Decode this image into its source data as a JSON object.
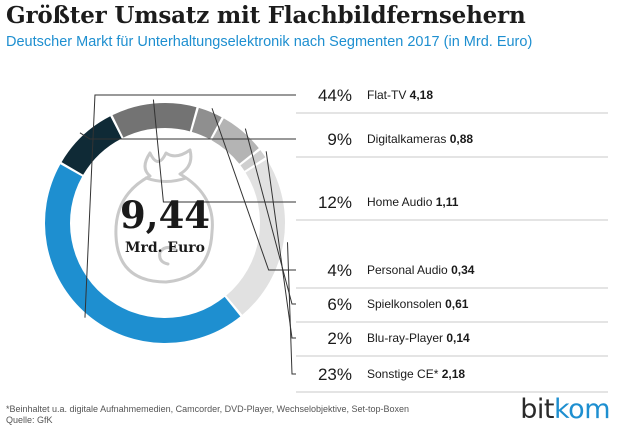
{
  "title": "Größter Umsatz mit Flachbildfernsehern",
  "subtitle": "Deutscher Markt für Unterhaltungselektronik nach Segmenten 2017 (in Mrd. Euro)",
  "chart_data": {
    "type": "pie",
    "variant": "donut",
    "center_value": "9,44",
    "center_label": "Mrd. Euro",
    "slices": [
      {
        "label": "Flat-TV",
        "percent": "44%",
        "value": 4.18,
        "value_label": "4,18",
        "color": "#1e8fd0"
      },
      {
        "label": "Digitalkameras",
        "percent": "9%",
        "value": 0.88,
        "value_label": "0,88",
        "color": "#0f2a36"
      },
      {
        "label": "Home Audio",
        "percent": "12%",
        "value": 1.11,
        "value_label": "1,11",
        "color": "#737373"
      },
      {
        "label": "Personal Audio",
        "percent": "4%",
        "value": 0.34,
        "value_label": "0,34",
        "color": "#8f8f8f"
      },
      {
        "label": "Spielkonsolen",
        "percent": "6%",
        "value": 0.61,
        "value_label": "0,61",
        "color": "#b4b4b4"
      },
      {
        "label": "Blu-ray-Player",
        "percent": "2%",
        "value": 0.14,
        "value_label": "0,14",
        "color": "#cfcfcf"
      },
      {
        "label": "Sonstige CE*",
        "percent": "23%",
        "value": 2.18,
        "value_label": "2,18",
        "color": "#e1e1e1"
      }
    ]
  },
  "footnote": {
    "line1": "*Beinhaltet u.a. digitale Aufnahmemedien, Camcorder, DVD-Player, Wechselobjektive, Set-top-Boxen",
    "line2": "Quelle: GfK"
  },
  "logo": {
    "part1": "bit",
    "part2": "kom"
  },
  "icon": "money-bag-icon"
}
